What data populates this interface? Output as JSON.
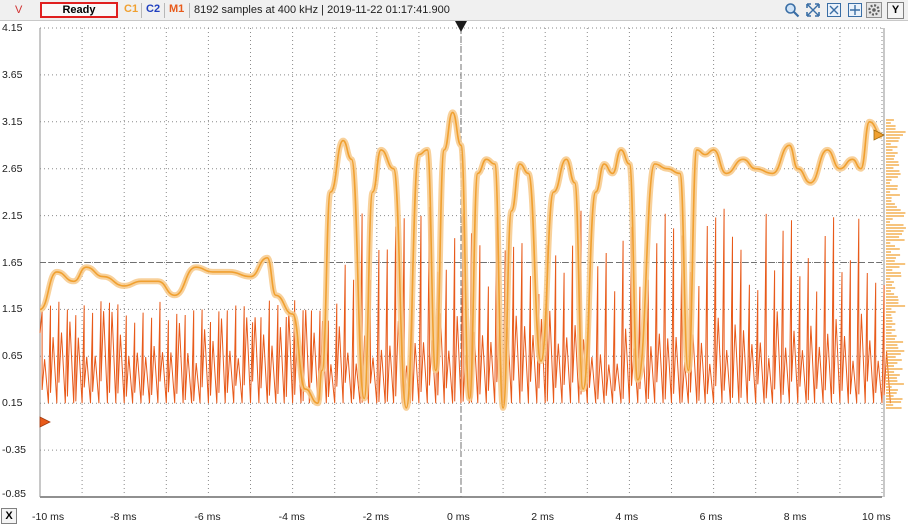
{
  "toolbar": {
    "unit": "V",
    "status": "Ready",
    "channel_1": "C1",
    "channel_2": "C2",
    "math_1": "M1",
    "info": "8192 samples at 400 kHz | 2019-11-22 01:17:41.900",
    "icons": [
      "zoom-icon",
      "zoom-to-fit-icon",
      "zoom-out-icon",
      "settings-gear-icon"
    ],
    "y_button": "Y"
  },
  "x_button": "X",
  "colors": {
    "channel_1": "#f0a030",
    "channel_2": "#2040c0",
    "math_1": "#e85a1a",
    "status_border": "#e02020",
    "grid": "#8a8a8a"
  },
  "chart_data": {
    "type": "line",
    "y_tick_labels": [
      "4.15",
      "3.65",
      "3.15",
      "2.65",
      "2.15",
      "1.65",
      "1.15",
      "0.65",
      "0.15",
      "-0.35",
      "-0.85"
    ],
    "x_tick_labels": [
      "-10 ms",
      "-8 ms",
      "-6 ms",
      "-4 ms",
      "-2 ms",
      "0 ms",
      "2 ms",
      "4 ms",
      "6 ms",
      "8 ms",
      "10 ms"
    ],
    "ylim": [
      -0.85,
      4.15
    ],
    "xlim_ms": [
      -10,
      10
    ],
    "grid": true,
    "series": [
      {
        "name": "C1",
        "x_ms": [
          -10,
          -9.6,
          -9.2,
          -8.9,
          -8.5,
          -8.0,
          -7.6,
          -7.2,
          -6.8,
          -6.3,
          -5.9,
          -5.5,
          -5.0,
          -4.6,
          -4.4,
          -4.0,
          -3.7,
          -3.4,
          -3.3,
          -3.1,
          -2.8,
          -2.6,
          -2.3,
          -2.1,
          -1.9,
          -1.6,
          -1.3,
          -1.0,
          -0.8,
          -0.6,
          -0.4,
          -0.2,
          0.0,
          0.2,
          0.4,
          0.6,
          0.8,
          1.0,
          1.2,
          1.4,
          1.6,
          1.9,
          2.2,
          2.5,
          2.7,
          2.9,
          3.2,
          3.4,
          3.6,
          3.8,
          4.0,
          4.2,
          4.6,
          4.9,
          5.2,
          5.4,
          5.6,
          5.8,
          6.0,
          6.3,
          6.7,
          7.0,
          7.4,
          7.8,
          8.0,
          8.3,
          8.7,
          9.0,
          9.3,
          9.5,
          9.7,
          10.0
        ],
        "values": [
          1.15,
          1.55,
          1.45,
          1.6,
          1.5,
          1.4,
          1.45,
          1.45,
          1.3,
          1.6,
          1.55,
          1.55,
          1.5,
          1.7,
          1.3,
          1.1,
          0.3,
          0.15,
          0.5,
          2.4,
          2.95,
          2.75,
          0.2,
          2.4,
          2.85,
          2.65,
          0.1,
          2.8,
          2.85,
          0.5,
          2.85,
          3.25,
          2.9,
          0.2,
          2.6,
          2.75,
          2.7,
          0.1,
          2.2,
          2.7,
          2.6,
          0.6,
          2.4,
          2.75,
          2.5,
          0.3,
          2.4,
          2.7,
          2.6,
          2.85,
          2.7,
          0.4,
          2.7,
          2.65,
          2.6,
          0.5,
          2.85,
          2.8,
          2.85,
          2.6,
          2.75,
          2.65,
          2.6,
          2.9,
          2.65,
          2.5,
          2.85,
          2.65,
          2.75,
          2.65,
          3.15,
          3.0
        ],
        "color": "#f0a030"
      },
      {
        "name": "M1",
        "color": "#e85a1a",
        "baseline": 0.15,
        "pulse_peak_before_minus3ms": 1.25,
        "pulse_peak_after_minus3ms": 2.25,
        "pulse_period_ms": 0.2
      }
    ],
    "reference_lines": {
      "horizontal": 1.65,
      "vertical_ms": 0
    }
  }
}
